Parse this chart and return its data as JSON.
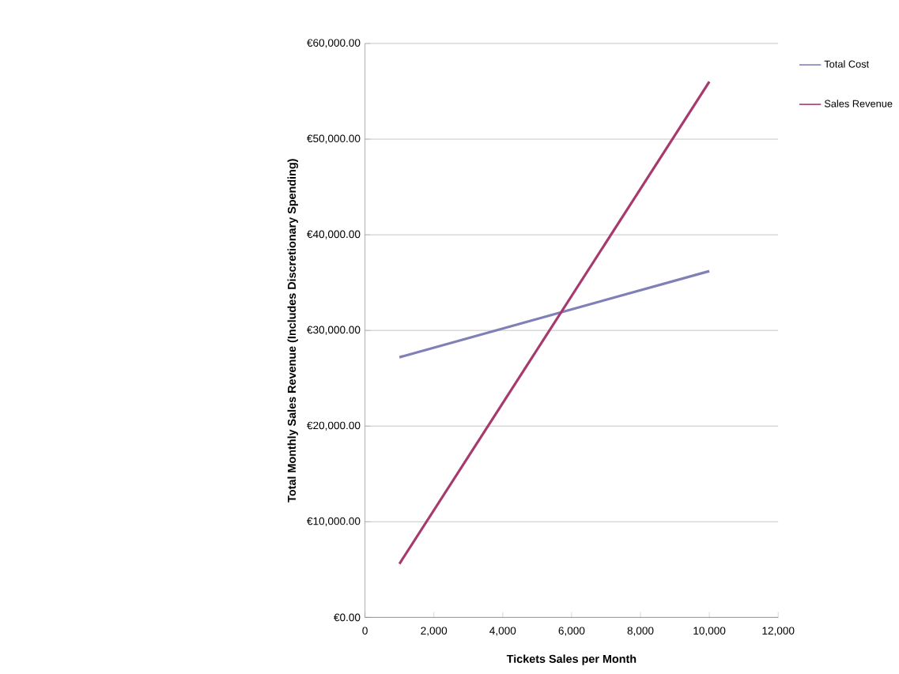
{
  "chart_data": {
    "type": "line",
    "xlabel": "Tickets Sales per Month",
    "ylabel": "Total Monthly Sales Revenue (Includes Discretionary Spending)",
    "x": [
      1000,
      10000
    ],
    "series": [
      {
        "name": "Total Cost",
        "color": "#8080b8",
        "values": [
          27200,
          36200
        ]
      },
      {
        "name": "Sales Revenue",
        "color": "#a63a6e",
        "values": [
          5600,
          56000
        ]
      }
    ],
    "xlim": [
      0,
      12000
    ],
    "xticks": [
      0,
      {
        "value": 2000,
        "label": "2,000"
      },
      {
        "value": 4000,
        "label": "4,000"
      },
      {
        "value": 6000,
        "label": "6,000"
      },
      {
        "value": 8000,
        "label": "8,000"
      },
      {
        "value": 10000,
        "label": "10,000"
      },
      {
        "value": 12000,
        "label": "12,000"
      }
    ],
    "ylim": [
      0,
      60000
    ],
    "yticks": [
      {
        "value": 0,
        "label": "€0.00"
      },
      {
        "value": 10000,
        "label": "€10,000.00"
      },
      {
        "value": 20000,
        "label": "€20,000.00"
      },
      {
        "value": 30000,
        "label": "€30,000.00"
      },
      {
        "value": 40000,
        "label": "€40,000.00"
      },
      {
        "value": 50000,
        "label": "€50,000.00"
      },
      {
        "value": 60000,
        "label": "€60,000.00"
      }
    ],
    "grid": "y",
    "legend": "top right",
    "marker": "none",
    "line_style": "solid"
  }
}
